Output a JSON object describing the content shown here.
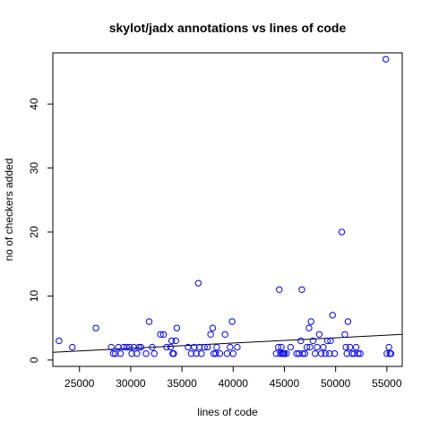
{
  "chart_data": {
    "type": "scatter",
    "title": "skylot/jadx annotations vs lines of code",
    "xlabel": "lines of code",
    "ylabel": "no of checkers added",
    "xlim": [
      22400,
      56500
    ],
    "ylim": [
      -1,
      48
    ],
    "xticks": [
      25000,
      30000,
      35000,
      40000,
      45000,
      50000,
      55000
    ],
    "yticks": [
      0,
      10,
      20,
      30,
      40
    ],
    "grid": false,
    "point_color": "#0000ff",
    "line_color": "#000000",
    "regression_line": {
      "x": [
        22400,
        56500
      ],
      "y": [
        1.2,
        4.0
      ]
    },
    "points": [
      [
        23000,
        3
      ],
      [
        24300,
        2
      ],
      [
        26600,
        5
      ],
      [
        28100,
        2
      ],
      [
        28300,
        1
      ],
      [
        28500,
        1
      ],
      [
        28800,
        2
      ],
      [
        29000,
        1
      ],
      [
        29300,
        2
      ],
      [
        29600,
        2
      ],
      [
        29900,
        2
      ],
      [
        30100,
        1
      ],
      [
        30300,
        2
      ],
      [
        30600,
        1
      ],
      [
        30800,
        2
      ],
      [
        31000,
        2
      ],
      [
        31500,
        1
      ],
      [
        31800,
        6
      ],
      [
        32100,
        2
      ],
      [
        32300,
        1
      ],
      [
        32900,
        4
      ],
      [
        33200,
        4
      ],
      [
        33500,
        2
      ],
      [
        33900,
        2
      ],
      [
        34000,
        3
      ],
      [
        34100,
        1
      ],
      [
        34200,
        1
      ],
      [
        34400,
        3
      ],
      [
        34500,
        5
      ],
      [
        35600,
        2
      ],
      [
        35900,
        1
      ],
      [
        36200,
        2
      ],
      [
        36400,
        1
      ],
      [
        36600,
        12
      ],
      [
        36700,
        2
      ],
      [
        36900,
        1
      ],
      [
        37200,
        2
      ],
      [
        37500,
        2
      ],
      [
        37800,
        4
      ],
      [
        38000,
        5
      ],
      [
        38100,
        1
      ],
      [
        38300,
        1
      ],
      [
        38400,
        2
      ],
      [
        38700,
        1
      ],
      [
        39200,
        4
      ],
      [
        39400,
        1
      ],
      [
        39700,
        2
      ],
      [
        39900,
        6
      ],
      [
        40000,
        1
      ],
      [
        40400,
        2
      ],
      [
        44200,
        1
      ],
      [
        44400,
        2
      ],
      [
        44500,
        11
      ],
      [
        44600,
        1
      ],
      [
        44700,
        2
      ],
      [
        44800,
        1
      ],
      [
        44900,
        1
      ],
      [
        45000,
        1
      ],
      [
        45200,
        1
      ],
      [
        45600,
        2
      ],
      [
        46200,
        1
      ],
      [
        46400,
        1
      ],
      [
        46600,
        3
      ],
      [
        46700,
        11
      ],
      [
        46800,
        1
      ],
      [
        47000,
        1
      ],
      [
        47200,
        2
      ],
      [
        47400,
        5
      ],
      [
        47500,
        2
      ],
      [
        47600,
        6
      ],
      [
        47800,
        3
      ],
      [
        48000,
        1
      ],
      [
        48200,
        2
      ],
      [
        48400,
        4
      ],
      [
        48600,
        1
      ],
      [
        48800,
        2
      ],
      [
        49000,
        1
      ],
      [
        49200,
        3
      ],
      [
        49400,
        1
      ],
      [
        49500,
        3
      ],
      [
        49700,
        7
      ],
      [
        49900,
        1
      ],
      [
        50600,
        20
      ],
      [
        50900,
        4
      ],
      [
        51000,
        2
      ],
      [
        51100,
        1
      ],
      [
        51200,
        6
      ],
      [
        51400,
        2
      ],
      [
        51600,
        1
      ],
      [
        51800,
        1
      ],
      [
        52000,
        2
      ],
      [
        52200,
        1
      ],
      [
        52400,
        1
      ],
      [
        54900,
        47
      ],
      [
        55000,
        1
      ],
      [
        55200,
        2
      ],
      [
        55300,
        1
      ],
      [
        55400,
        1
      ]
    ]
  }
}
